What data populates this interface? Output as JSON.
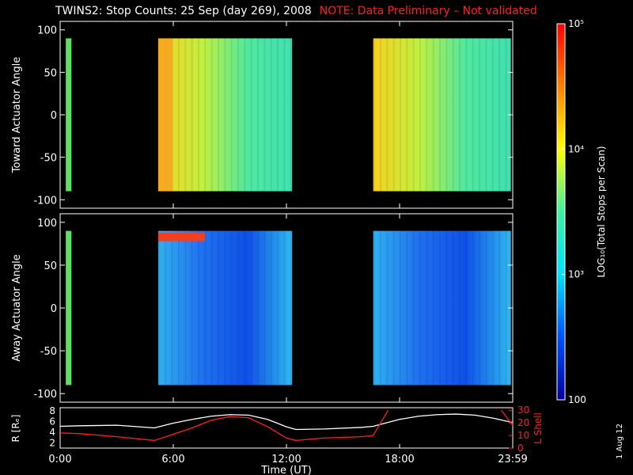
{
  "header": {
    "title": "TWINS2: Stop Counts: 25 Sep (day 269), 2008",
    "note": "NOTE: Data Preliminary – Not validated"
  },
  "stamp": "1 Aug 12",
  "chart_data": [
    {
      "type": "heatmap",
      "ylabel": "Toward Actuator Angle",
      "ylim": [
        -110,
        110
      ],
      "yticks": [
        "100",
        "50",
        "0",
        "-50",
        "-100"
      ],
      "ytick_values": [
        100,
        50,
        0,
        -50,
        -100
      ],
      "xlim": [
        0,
        24
      ],
      "data_intervals_hours": [
        [
          0.3,
          0.6
        ],
        [
          5.2,
          12.3
        ],
        [
          16.6,
          23.9
        ]
      ],
      "angle_range": [
        -90,
        90
      ],
      "dominant_color": "#30e0a0"
    },
    {
      "type": "heatmap",
      "ylabel": "Away Actuator Angle",
      "ylim": [
        -110,
        110
      ],
      "yticks": [
        "100",
        "50",
        "0",
        "-50",
        "-100"
      ],
      "ytick_values": [
        100,
        50,
        0,
        -50,
        -100
      ],
      "xlim": [
        0,
        24
      ],
      "data_intervals_hours": [
        [
          0.3,
          0.6
        ],
        [
          5.2,
          12.3
        ],
        [
          16.6,
          23.9
        ]
      ],
      "angle_range": [
        -90,
        90
      ],
      "dominant_color": "#1060f0"
    },
    {
      "type": "line",
      "ylabel_left": "R [Rₑ]",
      "ylabel_right": "L Shell",
      "yticks_left": [
        "8",
        "6",
        "4",
        "2"
      ],
      "yticks_left_values": [
        8,
        6,
        4,
        2
      ],
      "yticks_right": [
        "30",
        "20",
        "10",
        "0"
      ],
      "yticks_right_values": [
        30,
        20,
        10,
        0
      ],
      "ylim_left": [
        1,
        8.6
      ],
      "ylim_right": [
        0,
        32
      ],
      "xlabel": "Time (UT)",
      "xticks": [
        "0:00",
        "6:00",
        "12:00",
        "18:00",
        "23:59"
      ],
      "xtick_values": [
        0,
        6,
        12,
        18,
        24
      ],
      "series": [
        {
          "color": "#ffffff",
          "x": [
            0,
            1,
            3,
            5,
            6,
            7,
            8,
            9,
            10,
            11,
            12,
            12.5,
            14,
            16,
            16.6,
            18,
            19,
            20,
            21,
            22,
            23,
            24
          ],
          "y": [
            5.1,
            5.2,
            5.3,
            4.8,
            5.7,
            6.4,
            7.0,
            7.3,
            7.2,
            6.4,
            5.0,
            4.5,
            4.6,
            4.9,
            5.1,
            6.4,
            7.0,
            7.3,
            7.4,
            7.2,
            6.6,
            5.8
          ]
        },
        {
          "color": "#ff2020",
          "axis": "right",
          "x": [
            0,
            1,
            3,
            5,
            6,
            7,
            8,
            9,
            10,
            11,
            12,
            12.5,
            14,
            16,
            16.6,
            17.4
          ],
          "y": [
            12,
            11.5,
            9,
            6,
            11,
            16,
            22,
            25,
            24,
            17,
            8,
            6,
            8,
            9,
            10,
            30
          ]
        },
        {
          "color": "#ff2020",
          "axis": "right",
          "x": [
            23.4,
            24
          ],
          "y": [
            30,
            18
          ]
        }
      ]
    }
  ],
  "colorbar": {
    "label": "LOG₁₀(Total Stops per Scan)",
    "ticks": [
      "10⁵",
      "10⁴",
      "10³",
      "100"
    ],
    "tick_values": [
      100000,
      10000,
      1000,
      100
    ],
    "range": [
      100,
      100000
    ],
    "colors": [
      "#ff0000",
      "#ff8000",
      "#ffff00",
      "#40f0a0",
      "#00e0ff",
      "#0050ff",
      "#0000a0"
    ]
  }
}
